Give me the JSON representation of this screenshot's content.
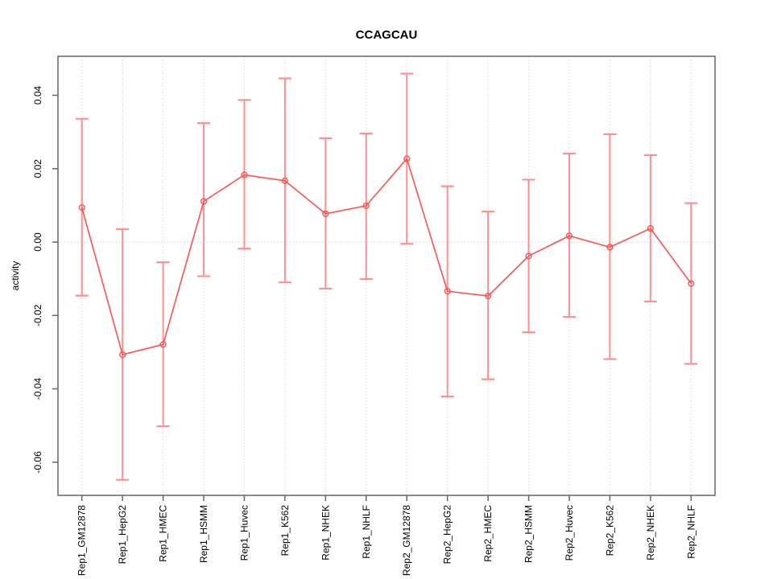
{
  "chart_data": {
    "type": "line",
    "title": "CCAGCAU",
    "xlabel": "",
    "ylabel": "activity",
    "categories": [
      "Rep1_GM12878",
      "Rep1_HepG2",
      "Rep1_HMEC",
      "Rep1_HSMM",
      "Rep1_Huvec",
      "Rep1_K562",
      "Rep1_NHEK",
      "Rep1_NHLF",
      "Rep2_GM12878",
      "Rep2_HepG2",
      "Rep2_HMEC",
      "Rep2_HSMM",
      "Rep2_Huvec",
      "Rep2_K562",
      "Rep2_NHEK",
      "Rep2_NHLF"
    ],
    "series": [
      {
        "name": "activity",
        "values": [
          0.0094,
          -0.0307,
          -0.0279,
          0.0111,
          0.0183,
          0.0167,
          0.0077,
          0.0099,
          0.0227,
          -0.0134,
          -0.0147,
          -0.0038,
          0.0017,
          -0.0014,
          0.0037,
          -0.0113
        ],
        "upper": [
          0.0336,
          0.0035,
          -0.0055,
          0.0324,
          0.0387,
          0.0446,
          0.0283,
          0.0296,
          0.0459,
          0.0152,
          0.0083,
          0.017,
          0.0241,
          0.0294,
          0.0237,
          0.0106
        ],
        "lower": [
          -0.0146,
          -0.0648,
          -0.0502,
          -0.0093,
          -0.0018,
          -0.011,
          -0.0127,
          -0.0101,
          -0.0005,
          -0.0421,
          -0.0374,
          -0.0246,
          -0.0204,
          -0.0319,
          -0.0162,
          -0.0332
        ]
      }
    ],
    "ylim": [
      -0.069,
      0.0506
    ],
    "yticks": [
      0.04,
      0.02,
      0,
      -0.02,
      -0.04,
      -0.06
    ],
    "ytick_labels": [
      "0.04",
      "0.02",
      "0.00",
      "-0.02",
      "-0.04",
      "-0.06"
    ],
    "grid": {
      "vertical_dotted": true,
      "zero_line_dotted": true,
      "legend": "none"
    },
    "colors": {
      "line": "#fb5252",
      "point": "#fb5252",
      "errorbar": "#fc9191",
      "grid": "#d9d9d9",
      "frame": "#666666",
      "tick": "#666666",
      "text": "#000000",
      "background": "#ffffff"
    }
  }
}
